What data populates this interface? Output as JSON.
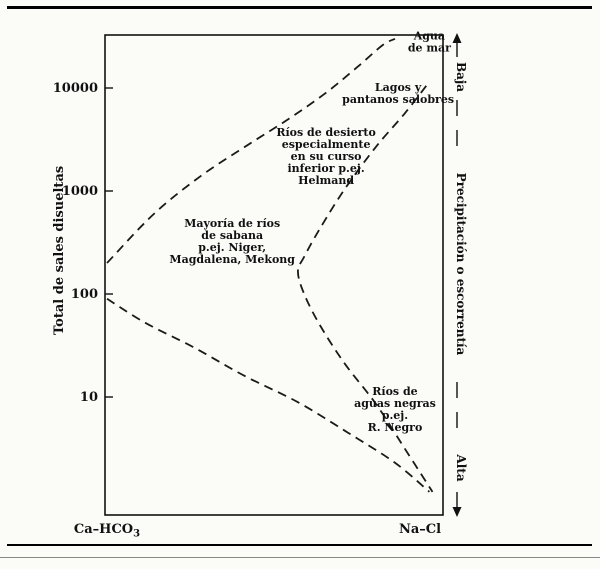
{
  "chart_data": {
    "type": "line",
    "title": "",
    "ylabel": "Total de sales disueltas",
    "y_scale": "log",
    "ylim": [
      0.7,
      33000
    ],
    "xlim": [
      0,
      1
    ],
    "grid": false,
    "line_style": "dashed",
    "y_ticks": [
      10000,
      1000,
      100,
      10
    ],
    "x_axis": {
      "left_label_main": "Ca–HCO",
      "left_label_sub": "3",
      "right_label": "Na–Cl"
    },
    "series": [
      {
        "name": "upper-boundary",
        "points": [
          [
            0,
            200
          ],
          [
            0.15,
            600
          ],
          [
            0.3,
            1400
          ],
          [
            0.45,
            2800
          ],
          [
            0.58,
            5000
          ],
          [
            0.7,
            9000
          ],
          [
            0.8,
            16000
          ],
          [
            0.88,
            26000
          ],
          [
            0.92,
            30000
          ]
        ]
      },
      {
        "name": "inner-boundary",
        "points": [
          [
            1.02,
            10500
          ],
          [
            0.95,
            5600
          ],
          [
            0.86,
            2700
          ],
          [
            0.76,
            1050
          ],
          [
            0.68,
            430
          ],
          [
            0.63,
            230
          ],
          [
            0.61,
            165
          ],
          [
            0.63,
            100
          ],
          [
            0.68,
            50
          ],
          [
            0.76,
            21
          ],
          [
            0.86,
            8.5
          ],
          [
            0.95,
            3.2
          ],
          [
            1.04,
            1.2
          ]
        ]
      },
      {
        "name": "lower-boundary",
        "points": [
          [
            0,
            90
          ],
          [
            0.12,
            53
          ],
          [
            0.28,
            30
          ],
          [
            0.44,
            16
          ],
          [
            0.61,
            8.9
          ],
          [
            0.77,
            4.5
          ],
          [
            0.92,
            2.3
          ],
          [
            1.03,
            1.2
          ]
        ]
      }
    ],
    "annotations": [
      {
        "name": "agua-de-mar",
        "x": 1.03,
        "tds": 26000,
        "lines": [
          "Agua",
          "de mar"
        ]
      },
      {
        "name": "lagos-pantanos",
        "x": 0.93,
        "tds": 8200,
        "lines": [
          "Lagos y",
          "pantanos salobres"
        ]
      },
      {
        "name": "rios-desierto",
        "x": 0.7,
        "tds": 2000,
        "lines": [
          "Ríos de desierto",
          "especialmente",
          "en su curso",
          "inferior p.ej.",
          "Helmand"
        ]
      },
      {
        "name": "rios-sabana",
        "x": 0.4,
        "tds": 300,
        "lines": [
          "Mayoría de ríos",
          "de sabana",
          "p.ej. Niger,",
          "Magdalena, Mekong"
        ]
      },
      {
        "name": "rios-aguas-negras",
        "x": 0.92,
        "tds": 7,
        "lines": [
          "Ríos de",
          "aguas negras",
          "p.ej.",
          "R. Negro"
        ]
      }
    ],
    "right_axis": {
      "top_label": "Baja",
      "middle_label": "Precipitación o escorrentía",
      "bottom_label": "Alta"
    }
  }
}
